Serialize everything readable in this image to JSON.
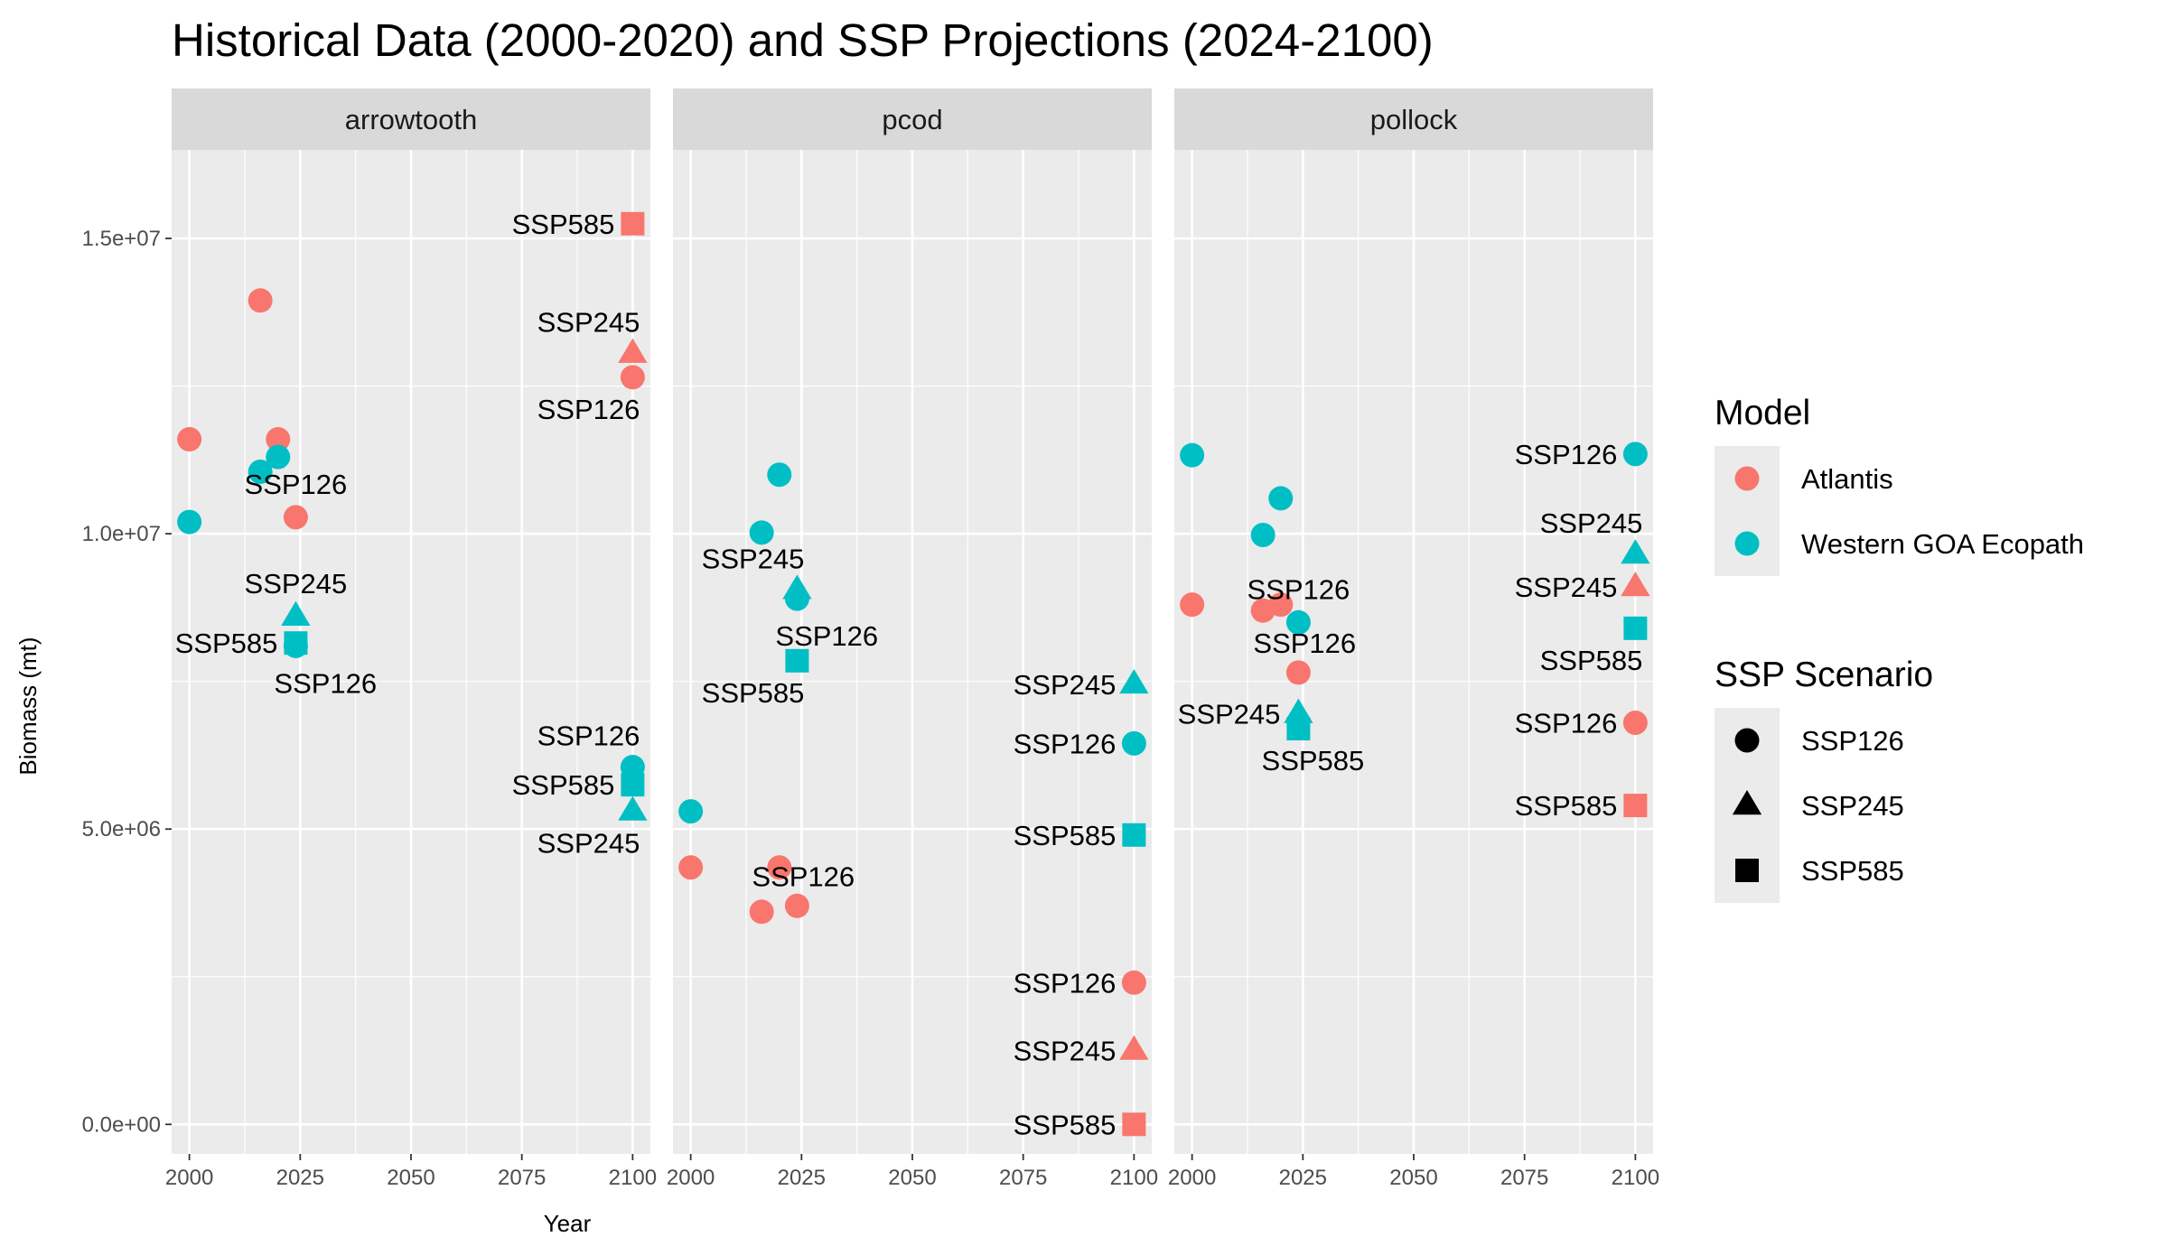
{
  "chart_data": {
    "type": "scatter",
    "title": "Historical Data (2000-2020) and SSP Projections (2024-2100)",
    "xlabel": "Year",
    "ylabel": "Biomass (mt)",
    "xlim": [
      1996,
      2104
    ],
    "ylim": [
      -500000,
      16500000
    ],
    "x_ticks": [
      2000,
      2025,
      2050,
      2075,
      2100
    ],
    "y_ticks": [
      0,
      5000000,
      10000000,
      15000000
    ],
    "y_tick_labels": [
      "0.0e+00",
      "5.0e+06",
      "1.0e+07",
      "1.5e+07"
    ],
    "grid": true,
    "facets": [
      "arrowtooth",
      "pcod",
      "pollock"
    ],
    "legends": [
      {
        "title": "Model",
        "type": "color",
        "entries": [
          {
            "label": "Atlantis",
            "color": "#F8766D"
          },
          {
            "label": "Western GOA Ecopath",
            "color": "#00BFC4"
          }
        ]
      },
      {
        "title": "SSP Scenario",
        "type": "shape",
        "entries": [
          {
            "label": "SSP126",
            "shape": "circle"
          },
          {
            "label": "SSP245",
            "shape": "triangle"
          },
          {
            "label": "SSP585",
            "shape": "square"
          }
        ]
      }
    ],
    "points": [
      {
        "facet": "arrowtooth",
        "model": "Atlantis",
        "scenario": "SSP126",
        "x": 2000,
        "y": 11600000,
        "label": ""
      },
      {
        "facet": "arrowtooth",
        "model": "Atlantis",
        "scenario": "SSP126",
        "x": 2016,
        "y": 13950000,
        "label": ""
      },
      {
        "facet": "arrowtooth",
        "model": "Atlantis",
        "scenario": "SSP126",
        "x": 2020,
        "y": 11600000,
        "label": ""
      },
      {
        "facet": "arrowtooth",
        "model": "Atlantis",
        "scenario": "SSP126",
        "x": 2024,
        "y": 10280000,
        "label": "SSP126",
        "label_pos": "above"
      },
      {
        "facet": "arrowtooth",
        "model": "Western GOA Ecopath",
        "scenario": "SSP126",
        "x": 2000,
        "y": 10200000,
        "label": ""
      },
      {
        "facet": "arrowtooth",
        "model": "Western GOA Ecopath",
        "scenario": "SSP126",
        "x": 2016,
        "y": 11050000,
        "label": ""
      },
      {
        "facet": "arrowtooth",
        "model": "Western GOA Ecopath",
        "scenario": "SSP126",
        "x": 2020,
        "y": 11300000,
        "label": ""
      },
      {
        "facet": "arrowtooth",
        "model": "Western GOA Ecopath",
        "scenario": "SSP245",
        "x": 2024,
        "y": 8600000,
        "label": "SSP245",
        "label_pos": "above"
      },
      {
        "facet": "arrowtooth",
        "model": "Western GOA Ecopath",
        "scenario": "SSP126",
        "x": 2024,
        "y": 8100000,
        "label": "SSP126",
        "label_pos": "below-right"
      },
      {
        "facet": "arrowtooth",
        "model": "Western GOA Ecopath",
        "scenario": "SSP585",
        "x": 2024,
        "y": 8150000,
        "label": "SSP585",
        "label_pos": "left"
      },
      {
        "facet": "arrowtooth",
        "model": "Atlantis",
        "scenario": "SSP585",
        "x": 2100,
        "y": 15250000,
        "label": "SSP585",
        "label_pos": "left"
      },
      {
        "facet": "arrowtooth",
        "model": "Atlantis",
        "scenario": "SSP245",
        "x": 2100,
        "y": 13050000,
        "label": "SSP245",
        "label_pos": "above-left"
      },
      {
        "facet": "arrowtooth",
        "model": "Atlantis",
        "scenario": "SSP126",
        "x": 2100,
        "y": 12650000,
        "label": "SSP126",
        "label_pos": "below-left"
      },
      {
        "facet": "arrowtooth",
        "model": "Western GOA Ecopath",
        "scenario": "SSP126",
        "x": 2100,
        "y": 6050000,
        "label": "SSP126",
        "label_pos": "above-left"
      },
      {
        "facet": "arrowtooth",
        "model": "Western GOA Ecopath",
        "scenario": "SSP585",
        "x": 2100,
        "y": 5750000,
        "label": "SSP585",
        "label_pos": "left"
      },
      {
        "facet": "arrowtooth",
        "model": "Western GOA Ecopath",
        "scenario": "SSP245",
        "x": 2100,
        "y": 5300000,
        "label": "SSP245",
        "label_pos": "below-left"
      },
      {
        "facet": "pcod",
        "model": "Western GOA Ecopath",
        "scenario": "SSP126",
        "x": 2000,
        "y": 5300000,
        "label": ""
      },
      {
        "facet": "pcod",
        "model": "Western GOA Ecopath",
        "scenario": "SSP126",
        "x": 2016,
        "y": 10020000,
        "label": ""
      },
      {
        "facet": "pcod",
        "model": "Western GOA Ecopath",
        "scenario": "SSP126",
        "x": 2020,
        "y": 11000000,
        "label": ""
      },
      {
        "facet": "pcod",
        "model": "Western GOA Ecopath",
        "scenario": "SSP245",
        "x": 2024,
        "y": 9050000,
        "label": "SSP245",
        "label_pos": "above-left"
      },
      {
        "facet": "pcod",
        "model": "Western GOA Ecopath",
        "scenario": "SSP126",
        "x": 2024,
        "y": 8900000,
        "label": "SSP126",
        "label_pos": "below-right"
      },
      {
        "facet": "pcod",
        "model": "Western GOA Ecopath",
        "scenario": "SSP585",
        "x": 2024,
        "y": 7850000,
        "label": "SSP585",
        "label_pos": "below-left"
      },
      {
        "facet": "pcod",
        "model": "Atlantis",
        "scenario": "SSP126",
        "x": 2000,
        "y": 4350000,
        "label": ""
      },
      {
        "facet": "pcod",
        "model": "Atlantis",
        "scenario": "SSP126",
        "x": 2016,
        "y": 3600000,
        "label": ""
      },
      {
        "facet": "pcod",
        "model": "Atlantis",
        "scenario": "SSP126",
        "x": 2020,
        "y": 4350000,
        "label": ""
      },
      {
        "facet": "pcod",
        "model": "Atlantis",
        "scenario": "SSP126",
        "x": 2024,
        "y": 3700000,
        "label": "SSP126",
        "label_pos": "above-right"
      },
      {
        "facet": "pcod",
        "model": "Western GOA Ecopath",
        "scenario": "SSP245",
        "x": 2100,
        "y": 7450000,
        "label": "SSP245",
        "label_pos": "left"
      },
      {
        "facet": "pcod",
        "model": "Western GOA Ecopath",
        "scenario": "SSP126",
        "x": 2100,
        "y": 6450000,
        "label": "SSP126",
        "label_pos": "left"
      },
      {
        "facet": "pcod",
        "model": "Western GOA Ecopath",
        "scenario": "SSP585",
        "x": 2100,
        "y": 4900000,
        "label": "SSP585",
        "label_pos": "left"
      },
      {
        "facet": "pcod",
        "model": "Atlantis",
        "scenario": "SSP126",
        "x": 2100,
        "y": 2400000,
        "label": "SSP126",
        "label_pos": "left"
      },
      {
        "facet": "pcod",
        "model": "Atlantis",
        "scenario": "SSP245",
        "x": 2100,
        "y": 1250000,
        "label": "SSP245",
        "label_pos": "left"
      },
      {
        "facet": "pcod",
        "model": "Atlantis",
        "scenario": "SSP585",
        "x": 2100,
        "y": 0,
        "label": "SSP585",
        "label_pos": "left"
      },
      {
        "facet": "pollock",
        "model": "Western GOA Ecopath",
        "scenario": "SSP126",
        "x": 2000,
        "y": 11330000,
        "label": ""
      },
      {
        "facet": "pollock",
        "model": "Western GOA Ecopath",
        "scenario": "SSP126",
        "x": 2016,
        "y": 9980000,
        "label": ""
      },
      {
        "facet": "pollock",
        "model": "Western GOA Ecopath",
        "scenario": "SSP126",
        "x": 2020,
        "y": 10600000,
        "label": ""
      },
      {
        "facet": "pollock",
        "model": "Western GOA Ecopath",
        "scenario": "SSP126",
        "x": 2024,
        "y": 8500000,
        "label": "SSP126",
        "label_pos": "above"
      },
      {
        "facet": "pollock",
        "model": "Atlantis",
        "scenario": "SSP126",
        "x": 2000,
        "y": 8800000,
        "label": ""
      },
      {
        "facet": "pollock",
        "model": "Atlantis",
        "scenario": "SSP126",
        "x": 2016,
        "y": 8700000,
        "label": ""
      },
      {
        "facet": "pollock",
        "model": "Atlantis",
        "scenario": "SSP126",
        "x": 2020,
        "y": 8800000,
        "label": ""
      },
      {
        "facet": "pollock",
        "model": "Atlantis",
        "scenario": "SSP126",
        "x": 2024,
        "y": 7650000,
        "label": "SSP126",
        "label_pos": "above-right"
      },
      {
        "facet": "pollock",
        "model": "Western GOA Ecopath",
        "scenario": "SSP245",
        "x": 2024,
        "y": 6950000,
        "label": "SSP245",
        "label_pos": "left"
      },
      {
        "facet": "pollock",
        "model": "Western GOA Ecopath",
        "scenario": "SSP585",
        "x": 2024,
        "y": 6700000,
        "label": "SSP585",
        "label_pos": "below"
      },
      {
        "facet": "pollock",
        "model": "Western GOA Ecopath",
        "scenario": "SSP126",
        "x": 2100,
        "y": 11350000,
        "label": "SSP126",
        "label_pos": "left"
      },
      {
        "facet": "pollock",
        "model": "Western GOA Ecopath",
        "scenario": "SSP245",
        "x": 2100,
        "y": 9650000,
        "label": "SSP245",
        "label_pos": "above-left"
      },
      {
        "facet": "pollock",
        "model": "Atlantis",
        "scenario": "SSP245",
        "x": 2100,
        "y": 9100000,
        "label": "SSP245",
        "label_pos": "left"
      },
      {
        "facet": "pollock",
        "model": "Western GOA Ecopath",
        "scenario": "SSP585",
        "x": 2100,
        "y": 8400000,
        "label": "SSP585",
        "label_pos": "below-left"
      },
      {
        "facet": "pollock",
        "model": "Atlantis",
        "scenario": "SSP126",
        "x": 2100,
        "y": 6800000,
        "label": "SSP126",
        "label_pos": "left"
      },
      {
        "facet": "pollock",
        "model": "Atlantis",
        "scenario": "SSP585",
        "x": 2100,
        "y": 5400000,
        "label": "SSP585",
        "label_pos": "left"
      }
    ]
  }
}
